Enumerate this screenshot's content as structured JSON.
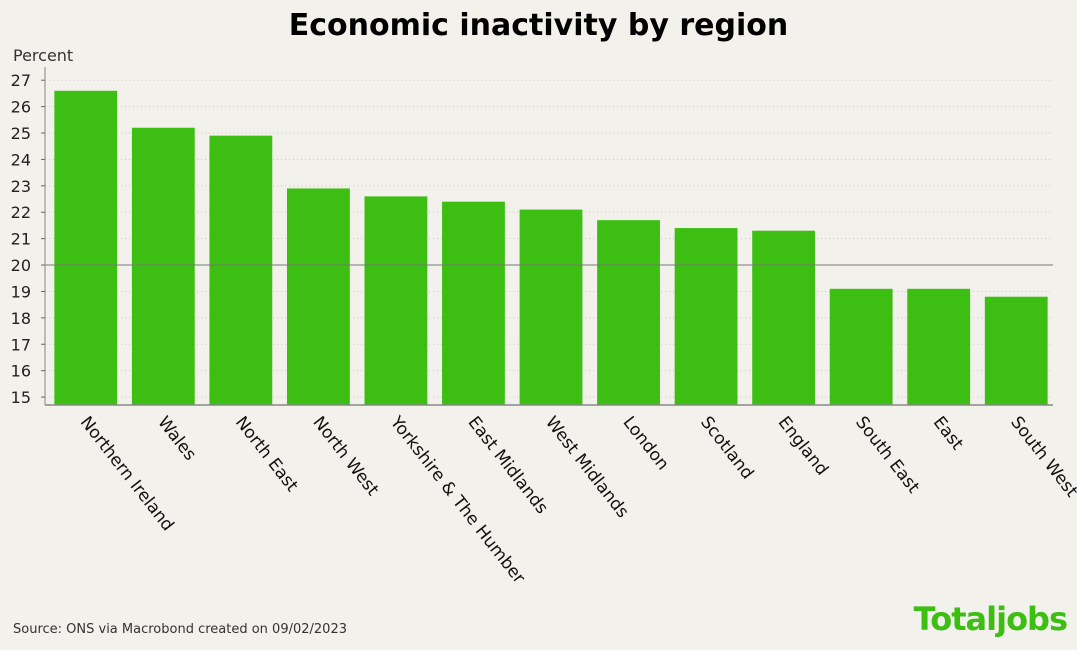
{
  "chart_data": {
    "type": "bar",
    "title": "Economic inactivity by region",
    "ylabel": "Percent",
    "xlabel": "",
    "categories": [
      "Northern Ireland",
      "Wales",
      "North East",
      "North West",
      "Yorkshire & The Humber",
      "East Midlands",
      "West Midlands",
      "London",
      "Scotland",
      "England",
      "South East",
      "East",
      "South West"
    ],
    "values": [
      26.6,
      25.2,
      24.9,
      22.9,
      22.6,
      22.4,
      22.1,
      21.7,
      21.4,
      21.3,
      19.1,
      19.1,
      18.8
    ],
    "ylim": [
      14.7,
      27.5
    ],
    "yticks": [
      15,
      16,
      17,
      18,
      19,
      20,
      21,
      22,
      23,
      24,
      25,
      26,
      27
    ],
    "reference_line": 20,
    "grid": "horizontal dotted",
    "bar_color": "#3cbe12"
  },
  "source": "Source: ONS via Macrobond created on 09/02/2023",
  "brand": "Totaljobs"
}
